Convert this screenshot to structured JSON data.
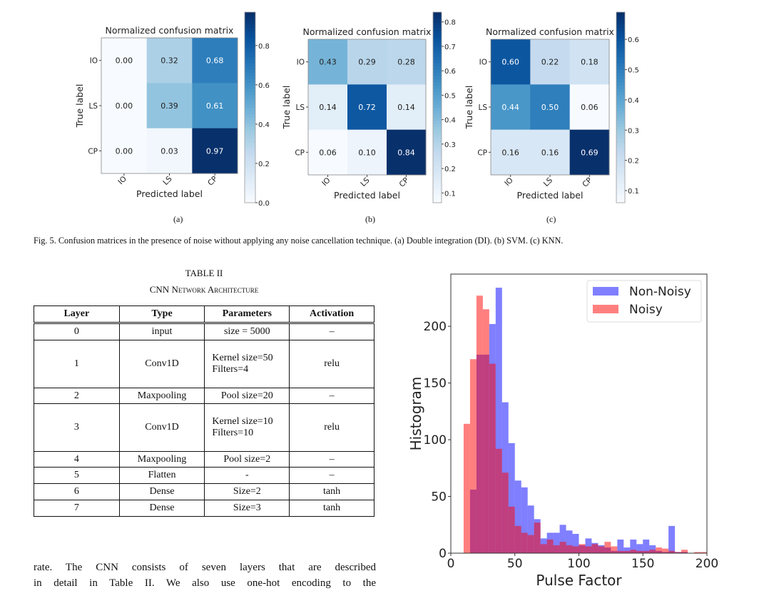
{
  "figure5": {
    "caption": "Fig. 5.   Confusion matrices in the presence of noise without applying any noise cancellation technique. (a) Double integration (DI). (b) SVM. (c) KNN.",
    "subfigure_labels": [
      "(a)",
      "(b)",
      "(c)"
    ]
  },
  "table2": {
    "label": "TABLE II",
    "title": "CNN Network Architecture",
    "headers": [
      "Layer",
      "Type",
      "Parameters",
      "Activation"
    ],
    "rows": [
      {
        "layer": "0",
        "type": "input",
        "params": [
          "size = 5000"
        ],
        "activation": "–"
      },
      {
        "layer": "1",
        "type": "Conv1D",
        "params": [
          "Kernel size=50",
          "Filters=4"
        ],
        "activation": "relu"
      },
      {
        "layer": "2",
        "type": "Maxpooling",
        "params": [
          "Pool size=20"
        ],
        "activation": "–"
      },
      {
        "layer": "3",
        "type": "Conv1D",
        "params": [
          "Kernel size=10",
          "Filters=10"
        ],
        "activation": "relu"
      },
      {
        "layer": "4",
        "type": "Maxpooling",
        "params": [
          "Pool size=2"
        ],
        "activation": "–"
      },
      {
        "layer": "5",
        "type": "Flatten",
        "params": [
          "-"
        ],
        "activation": "–"
      },
      {
        "layer": "6",
        "type": "Dense",
        "params": [
          "Size=2"
        ],
        "activation": "tanh"
      },
      {
        "layer": "7",
        "type": "Dense",
        "params": [
          "Size=3"
        ],
        "activation": "tanh"
      }
    ]
  },
  "body_text": [
    "rate. The CNN consists of seven layers that are described",
    "in detail in Table II. We also use one-hot encoding to the"
  ],
  "chart_data": [
    {
      "type": "heatmap",
      "title": "Normalized confusion matrix",
      "xlabel": "Predicted label",
      "ylabel": "True label",
      "x_categories": [
        "IO",
        "LS",
        "CP"
      ],
      "y_categories": [
        "IO",
        "LS",
        "CP"
      ],
      "values": [
        [
          0.0,
          0.32,
          0.68
        ],
        [
          0.0,
          0.39,
          0.61
        ],
        [
          0.0,
          0.03,
          0.97
        ]
      ],
      "colormap": "Blues",
      "colorbar_range": [
        0.0,
        0.97
      ],
      "colorbar_ticks": [
        "0.0",
        "0.2",
        "0.4",
        "0.6",
        "0.8"
      ]
    },
    {
      "type": "heatmap",
      "title": "Normalized confusion matrix",
      "xlabel": "Predicted label",
      "ylabel": "True label",
      "x_categories": [
        "IO",
        "LS",
        "CP"
      ],
      "y_categories": [
        "IO",
        "LS",
        "CP"
      ],
      "values": [
        [
          0.43,
          0.29,
          0.28
        ],
        [
          0.14,
          0.72,
          0.14
        ],
        [
          0.06,
          0.1,
          0.84
        ]
      ],
      "colormap": "Blues",
      "colorbar_range": [
        0.06,
        0.84
      ],
      "colorbar_ticks": [
        "0.1",
        "0.2",
        "0.3",
        "0.4",
        "0.5",
        "0.6",
        "0.7",
        "0.8"
      ]
    },
    {
      "type": "heatmap",
      "title": "Normalized confusion matrix",
      "xlabel": "Predicted label",
      "ylabel": "True label",
      "x_categories": [
        "IO",
        "LS",
        "CP"
      ],
      "y_categories": [
        "IO",
        "LS",
        "CP"
      ],
      "values": [
        [
          0.6,
          0.22,
          0.18
        ],
        [
          0.44,
          0.5,
          0.06
        ],
        [
          0.16,
          0.16,
          0.69
        ]
      ],
      "colormap": "Blues",
      "colorbar_range": [
        0.06,
        0.69
      ],
      "colorbar_ticks": [
        "0.1",
        "0.2",
        "0.3",
        "0.4",
        "0.5",
        "0.6"
      ]
    },
    {
      "type": "bar",
      "subtype": "histogram",
      "xlabel": "Pulse Factor",
      "ylabel": "Histogram",
      "xlim": [
        0,
        200
      ],
      "ylim": [
        0,
        246
      ],
      "xticks": [
        "0",
        "50",
        "100",
        "150",
        "200"
      ],
      "yticks": [
        "0",
        "50",
        "100",
        "150",
        "200"
      ],
      "grid": false,
      "legend": "top-right",
      "bin_width": 5,
      "bin_starts": [
        10,
        15,
        20,
        25,
        30,
        35,
        40,
        45,
        50,
        55,
        60,
        65,
        70,
        75,
        80,
        85,
        90,
        95,
        100,
        105,
        110,
        115,
        120,
        125,
        130,
        135,
        140,
        145,
        150,
        155,
        160,
        165,
        170,
        175,
        180,
        185,
        190,
        195
      ],
      "series": [
        {
          "name": "Non-Noisy",
          "color": "#0000ff",
          "alpha": 0.5,
          "values": [
            0,
            56,
            175,
            175,
            202,
            234,
            133,
            97,
            64,
            58,
            42,
            30,
            13,
            18,
            18,
            25,
            20,
            17,
            7,
            13,
            9,
            7,
            5,
            2,
            12,
            5,
            12,
            8,
            12,
            7,
            2,
            1,
            24,
            1,
            1,
            0,
            0,
            0
          ]
        },
        {
          "name": "Noisy",
          "color": "#ff0000",
          "alpha": 0.5,
          "values": [
            114,
            171,
            227,
            215,
            167,
            92,
            71,
            41,
            24,
            18,
            16,
            27,
            8,
            12,
            7,
            10,
            7,
            6,
            8,
            6,
            8,
            6,
            10,
            6,
            2,
            2,
            3,
            2,
            2,
            3,
            5,
            4,
            2,
            1,
            3,
            0,
            1,
            1
          ]
        }
      ]
    }
  ]
}
